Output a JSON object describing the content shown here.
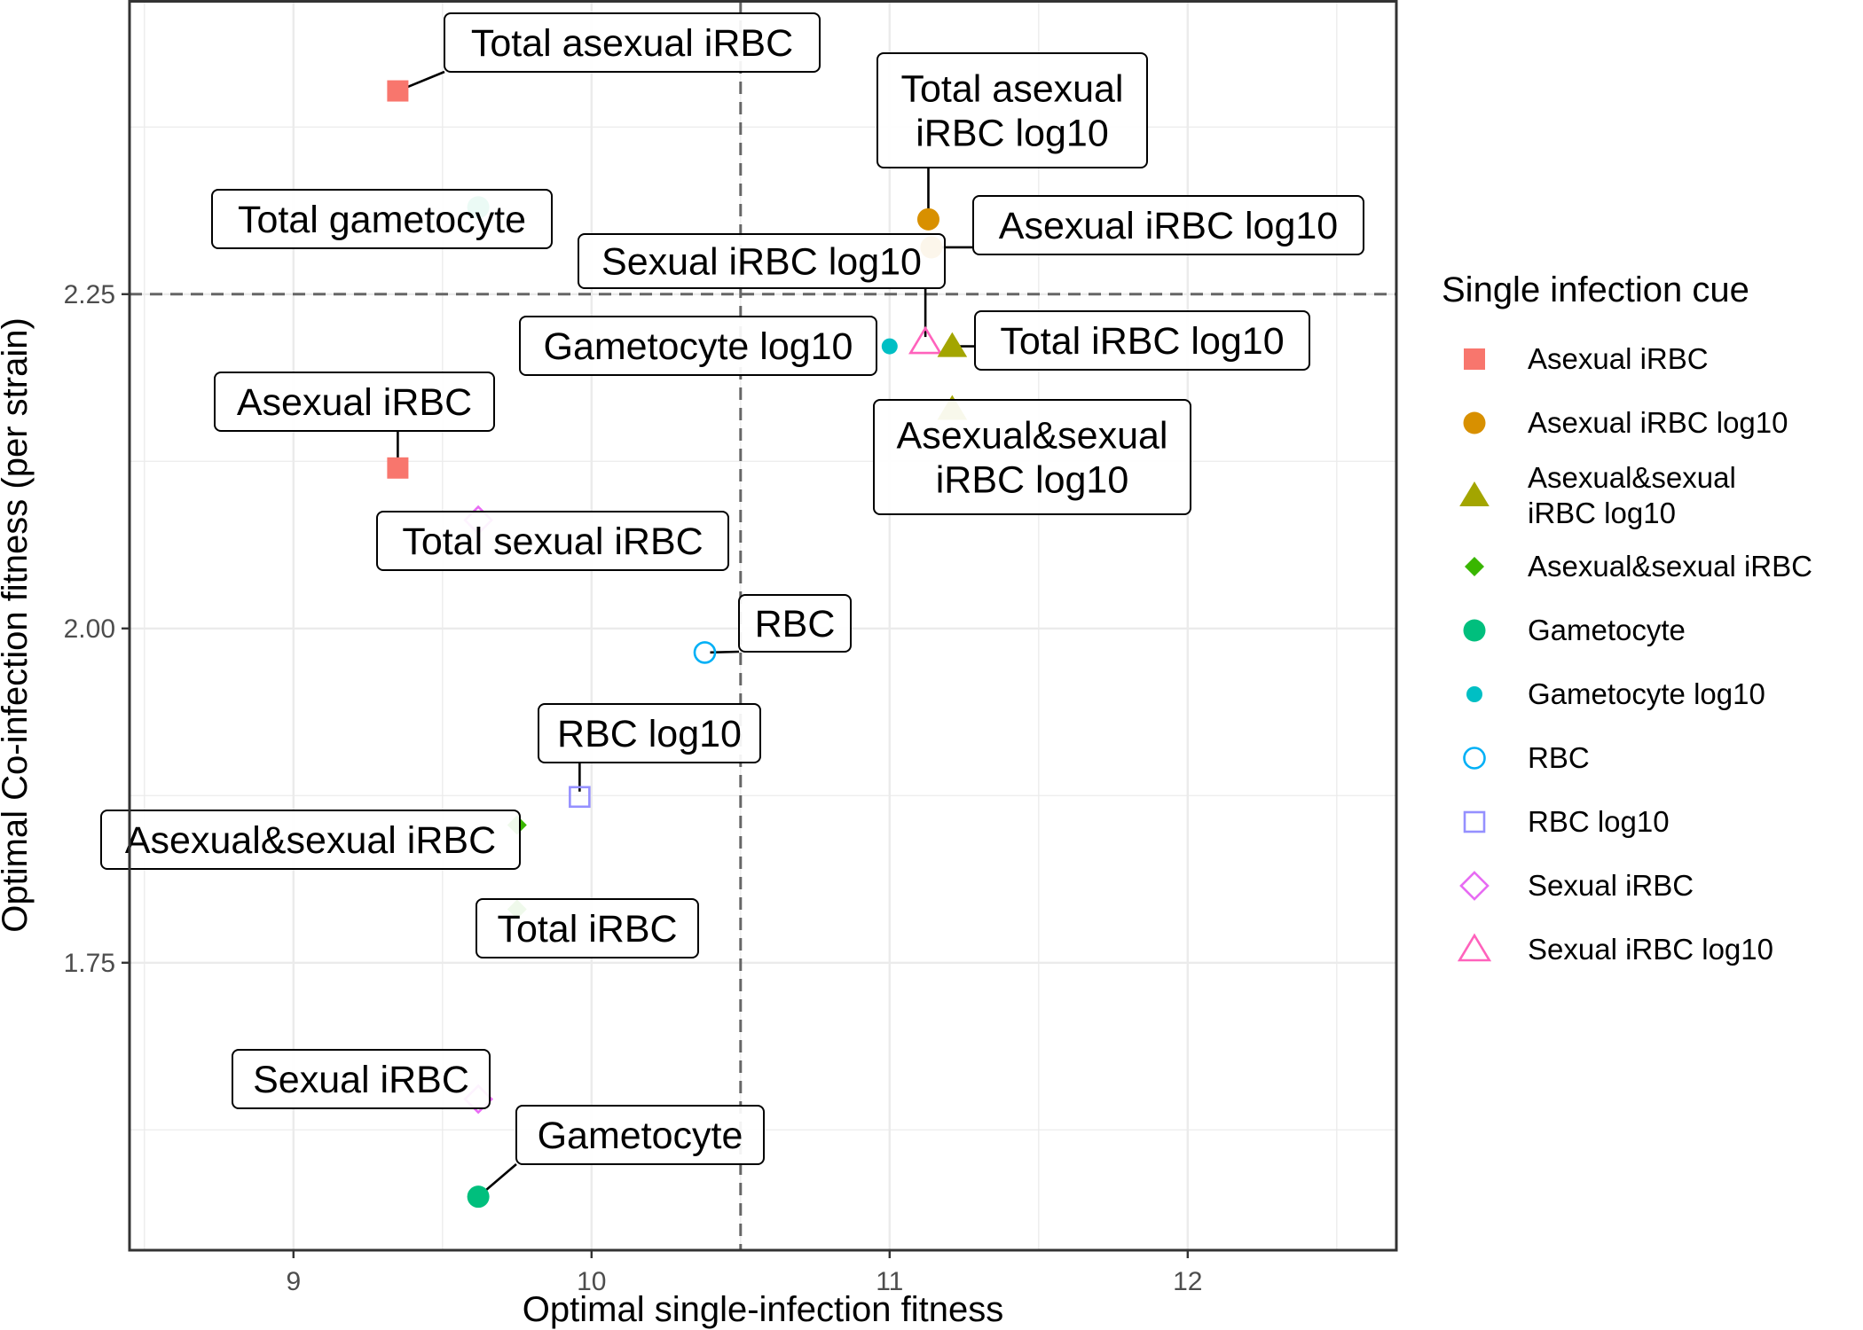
{
  "chart_data": {
    "type": "scatter",
    "xlabel": "Optimal single-infection fitness",
    "ylabel": "Optimal Co-infection fitness (per strain)",
    "xlim": [
      8.45,
      12.7
    ],
    "ylim": [
      1.535,
      2.47
    ],
    "x_ticks": [
      9,
      10,
      11,
      12
    ],
    "y_ticks": [
      1.75,
      2.0,
      2.25
    ],
    "y_tick_labels": [
      "1.75",
      "2.00",
      "2.25"
    ],
    "grid": true,
    "reference_lines": {
      "vertical_x": 10.5,
      "horizontal_y": 2.25,
      "style": "dashed"
    },
    "legend": {
      "title": "Single infection cue",
      "position": "right",
      "entries": [
        {
          "label": "Asexual iRBC",
          "color": "#F8766D",
          "shape": "square-filled"
        },
        {
          "label": "Asexual iRBC log10",
          "color": "#D89000",
          "shape": "circle-filled"
        },
        {
          "label": "Asexual&sexual iRBC log10",
          "label_lines": [
            "Asexual&sexual",
            "iRBC log10"
          ],
          "color": "#A3A500",
          "shape": "triangle-filled"
        },
        {
          "label": "Asexual&sexual iRBC",
          "color": "#39B600",
          "shape": "diamond-filled"
        },
        {
          "label": "Gametocyte",
          "color": "#00BF7D",
          "shape": "circle-filled"
        },
        {
          "label": "Gametocyte log10",
          "color": "#00BFC4",
          "shape": "circle-small-filled"
        },
        {
          "label": "RBC",
          "color": "#00B0F6",
          "shape": "circle-open"
        },
        {
          "label": "RBC log10",
          "color": "#9590FF",
          "shape": "square-open"
        },
        {
          "label": "Sexual iRBC",
          "color": "#E76BF3",
          "shape": "diamond-open"
        },
        {
          "label": "Sexual iRBC log10",
          "color": "#FF62BC",
          "shape": "triangle-open"
        }
      ]
    },
    "points": [
      {
        "cue": "Asexual iRBC",
        "x": 9.35,
        "y": 2.402,
        "label": "Total asexual iRBC"
      },
      {
        "cue": "Asexual iRBC",
        "x": 9.35,
        "y": 2.12,
        "label": "Asexual iRBC"
      },
      {
        "cue": "Gametocyte",
        "x": 9.62,
        "y": 2.315,
        "label": "Total gametocyte"
      },
      {
        "cue": "Gametocyte",
        "x": 9.62,
        "y": 1.575,
        "label": "Gametocyte"
      },
      {
        "cue": "Asexual iRBC log10",
        "x": 11.13,
        "y": 2.306,
        "label": "Total asexual iRBC log10",
        "label_lines": [
          "Total asexual",
          "iRBC log10"
        ]
      },
      {
        "cue": "Asexual iRBC log10",
        "x": 11.14,
        "y": 2.285,
        "label": "Asexual iRBC log10"
      },
      {
        "cue": "Sexual iRBC log10",
        "x": 11.12,
        "y": 2.214,
        "label": "Sexual iRBC log10"
      },
      {
        "cue": "Gametocyte log10",
        "x": 11.0,
        "y": 2.211,
        "label": "Gametocyte log10"
      },
      {
        "cue": "Asexual&sexual iRBC log10",
        "x": 11.21,
        "y": 2.211,
        "label": "Total iRBC log10"
      },
      {
        "cue": "Asexual&sexual iRBC log10",
        "x": 11.21,
        "y": 2.164,
        "label": "Asexual&sexual iRBC log10",
        "label_lines": [
          "Asexual&sexual",
          "iRBC log10"
        ]
      },
      {
        "cue": "Sexual iRBC",
        "x": 9.62,
        "y": 2.081,
        "label": "Total sexual iRBC"
      },
      {
        "cue": "RBC",
        "x": 10.38,
        "y": 1.982,
        "label": "RBC"
      },
      {
        "cue": "RBC log10",
        "x": 9.96,
        "y": 1.874,
        "label": "RBC log10"
      },
      {
        "cue": "Asexual&sexual iRBC",
        "x": 9.75,
        "y": 1.853,
        "label": "Asexual&sexual iRBC"
      },
      {
        "cue": "Asexual&sexual iRBC",
        "x": 9.75,
        "y": 1.79,
        "label": "Total iRBC"
      },
      {
        "cue": "Sexual iRBC",
        "x": 9.62,
        "y": 1.648,
        "label": "Sexual iRBC"
      }
    ]
  }
}
